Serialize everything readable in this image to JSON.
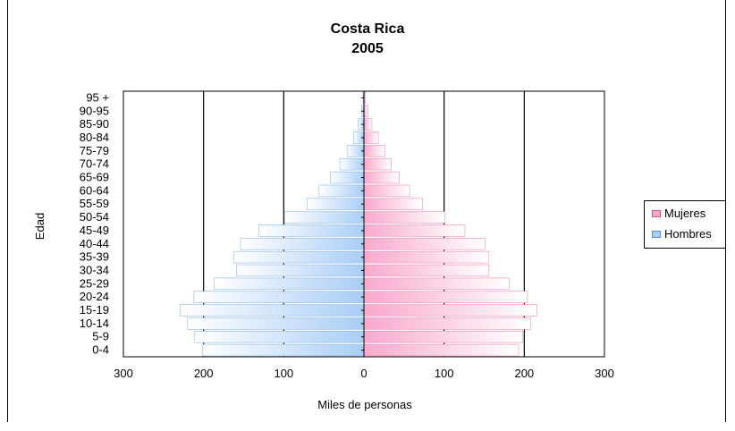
{
  "chart_data": {
    "type": "bar",
    "title": "Costa Rica",
    "subtitle": "2005",
    "xlabel": "Miles de personas",
    "ylabel": "Edad",
    "xlim": [
      -300,
      300
    ],
    "x_ticks": [
      -300,
      -200,
      -100,
      0,
      100,
      200,
      300
    ],
    "x_tick_labels": [
      "300",
      "200",
      "100",
      "0",
      "100",
      "200",
      "300"
    ],
    "categories": [
      "0-4",
      "5-9",
      "10-14",
      "15-19",
      "20-24",
      "25-29",
      "30-34",
      "35-39",
      "40-44",
      "45-49",
      "50-54",
      "55-59",
      "60-64",
      "65-69",
      "70-74",
      "75-79",
      "80-84",
      "85-90",
      "90-95",
      "95 +"
    ],
    "series": [
      {
        "name": "Mujeres",
        "color": "#f9a8cc",
        "values": [
          193,
          198,
          208,
          216,
          204,
          181,
          156,
          156,
          151,
          126,
          101,
          73,
          57,
          44,
          34,
          26,
          18,
          10,
          5,
          2
        ]
      },
      {
        "name": "Hombres",
        "color": "#a9cdf6",
        "values": [
          201,
          211,
          220,
          229,
          212,
          187,
          159,
          162,
          154,
          131,
          99,
          71,
          56,
          42,
          30,
          21,
          13,
          7,
          3,
          1
        ]
      }
    ],
    "legend_position": "right",
    "grid": true
  }
}
